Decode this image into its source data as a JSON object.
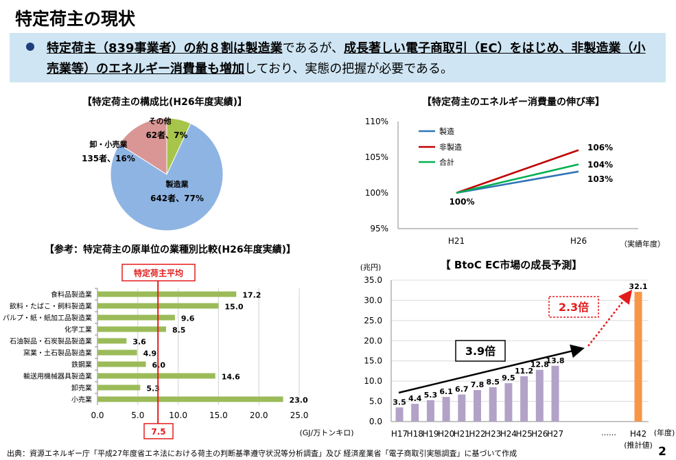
{
  "title": "特定荷主の現状",
  "banner": {
    "b1": "特定荷主（839事業者）の約８割は製造業",
    "t1": "であるが、",
    "b2": "成長著しい電子商取引（EC）をはじめ、非製造業（小売業等）のエネルギー消費量も増加",
    "t2": "しており、実態の把握が必要である。"
  },
  "chart_data": [
    {
      "type": "pie",
      "title": "【特定荷主の構成比(H26年度実績)】",
      "slices": [
        {
          "name": "製造業",
          "value_label": "642者、77%",
          "count": 642,
          "pct": 77,
          "color": "#8eb4e3"
        },
        {
          "name": "卸・小売業",
          "value_label": "135者、16%",
          "count": 135,
          "pct": 16,
          "color": "#d99694"
        },
        {
          "name": "その他",
          "value_label": "62者、7%",
          "count": 62,
          "pct": 7,
          "color": "#a7c54a"
        }
      ]
    },
    {
      "type": "line",
      "title": "【特定荷主のエネルギー消費量の伸び率】",
      "x": [
        "H21",
        "H26"
      ],
      "xlabel": "（実績年度）",
      "ylim": [
        95,
        110
      ],
      "yticks": [
        "95%",
        "100%",
        "105%",
        "110%"
      ],
      "start_label": "100%",
      "series": [
        {
          "name": "製造",
          "values": [
            100,
            103
          ],
          "end_label": "103%",
          "color": "#2e75b6"
        },
        {
          "name": "非製造",
          "values": [
            100,
            106
          ],
          "end_label": "106%",
          "color": "#c00000"
        },
        {
          "name": "合計",
          "values": [
            100,
            104
          ],
          "end_label": "104%",
          "color": "#00b050"
        }
      ]
    },
    {
      "type": "bar",
      "orientation": "horizontal",
      "title": "【参考：特定荷主の原単位の業種別比較(H26年度実績)】",
      "categories": [
        "食料品製造業",
        "飲料・たばこ・飼料製造業",
        "パルプ・紙・紙加工品製造業",
        "化学工業",
        "石油製品・石炭製品製造業",
        "窯業・土石製品製造業",
        "鉄鋼業",
        "輸送用機械器具製造業",
        "卸売業",
        "小売業"
      ],
      "values": [
        17.2,
        15.0,
        9.6,
        8.5,
        3.6,
        4.9,
        6.0,
        14.6,
        5.3,
        23.0
      ],
      "value_labels": [
        "17.2",
        "15.0",
        "9.6",
        "8.5",
        "3.6",
        "4.9",
        "6.0",
        "14.6",
        "5.3",
        "23.0"
      ],
      "xlim": [
        0,
        25
      ],
      "xticks": [
        "0.0",
        "5.0",
        "10.0",
        "15.0",
        "20.0",
        "25.0"
      ],
      "xlabel": "(GJ/万トンキロ)",
      "reference": {
        "label": "特定荷主平均",
        "value": 7.5,
        "value_label": "7.5"
      },
      "color": "#9bbb59"
    },
    {
      "type": "bar",
      "title": "【 BtoC EC市場の成長予測】",
      "ylabel": "(兆円)",
      "xlabel": "(年度)",
      "ylim": [
        0,
        35
      ],
      "yticks": [
        "0.0",
        "5.0",
        "10.0",
        "15.0",
        "20.0",
        "25.0",
        "30.0",
        "35.0"
      ],
      "categories": [
        "H17",
        "H18",
        "H19",
        "H20",
        "H21",
        "H22",
        "H23",
        "H24",
        "H25",
        "H26",
        "H27",
        "H42"
      ],
      "values": [
        3.5,
        4.4,
        5.3,
        6.1,
        6.7,
        7.8,
        8.5,
        9.5,
        11.2,
        12.8,
        13.8,
        32.1
      ],
      "value_labels": [
        "3.5",
        "4.4",
        "5.3",
        "6.1",
        "6.7",
        "7.8",
        "8.5",
        "9.5",
        "11.2",
        "12.8",
        "13.8",
        "32.1"
      ],
      "gap_label": "……",
      "estimate_note": "(推計値)",
      "annotations": [
        "3.9倍",
        "2.3倍"
      ],
      "colors": {
        "actual": "#b3a2c7",
        "forecast": "#f79646"
      }
    }
  ],
  "footer": "出典：資源エネルギー庁「平成27年度省エネ法における荷主の判断基準遵守状況等分析調査」及び 経済産業省「電子商取引実態調査」に基づいて作成",
  "page_number": "2"
}
